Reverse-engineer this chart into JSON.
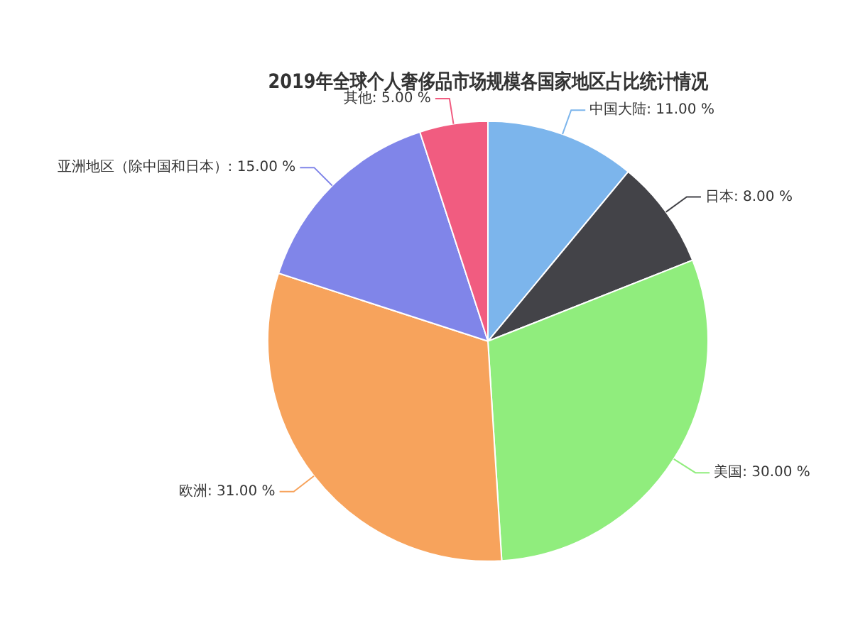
{
  "chart_data": {
    "type": "pie",
    "title": "2019年全球个人奢侈品市场规模各国家地区占比统计情况",
    "categories": [
      "中国大陆",
      "日本",
      "美国",
      "欧洲",
      "亚洲地区（除中国和日本）",
      "其他"
    ],
    "values": [
      11,
      8,
      30,
      31,
      15,
      5
    ],
    "colors": [
      "#7cb5ec",
      "#434348",
      "#90ed7d",
      "#f7a35c",
      "#8085e9",
      "#f15c80"
    ],
    "value_labels": [
      "11.00 %",
      "8.00 %",
      "30.00 %",
      "31.00 %",
      "15.00 %",
      "5.00 %"
    ],
    "legend": false
  }
}
